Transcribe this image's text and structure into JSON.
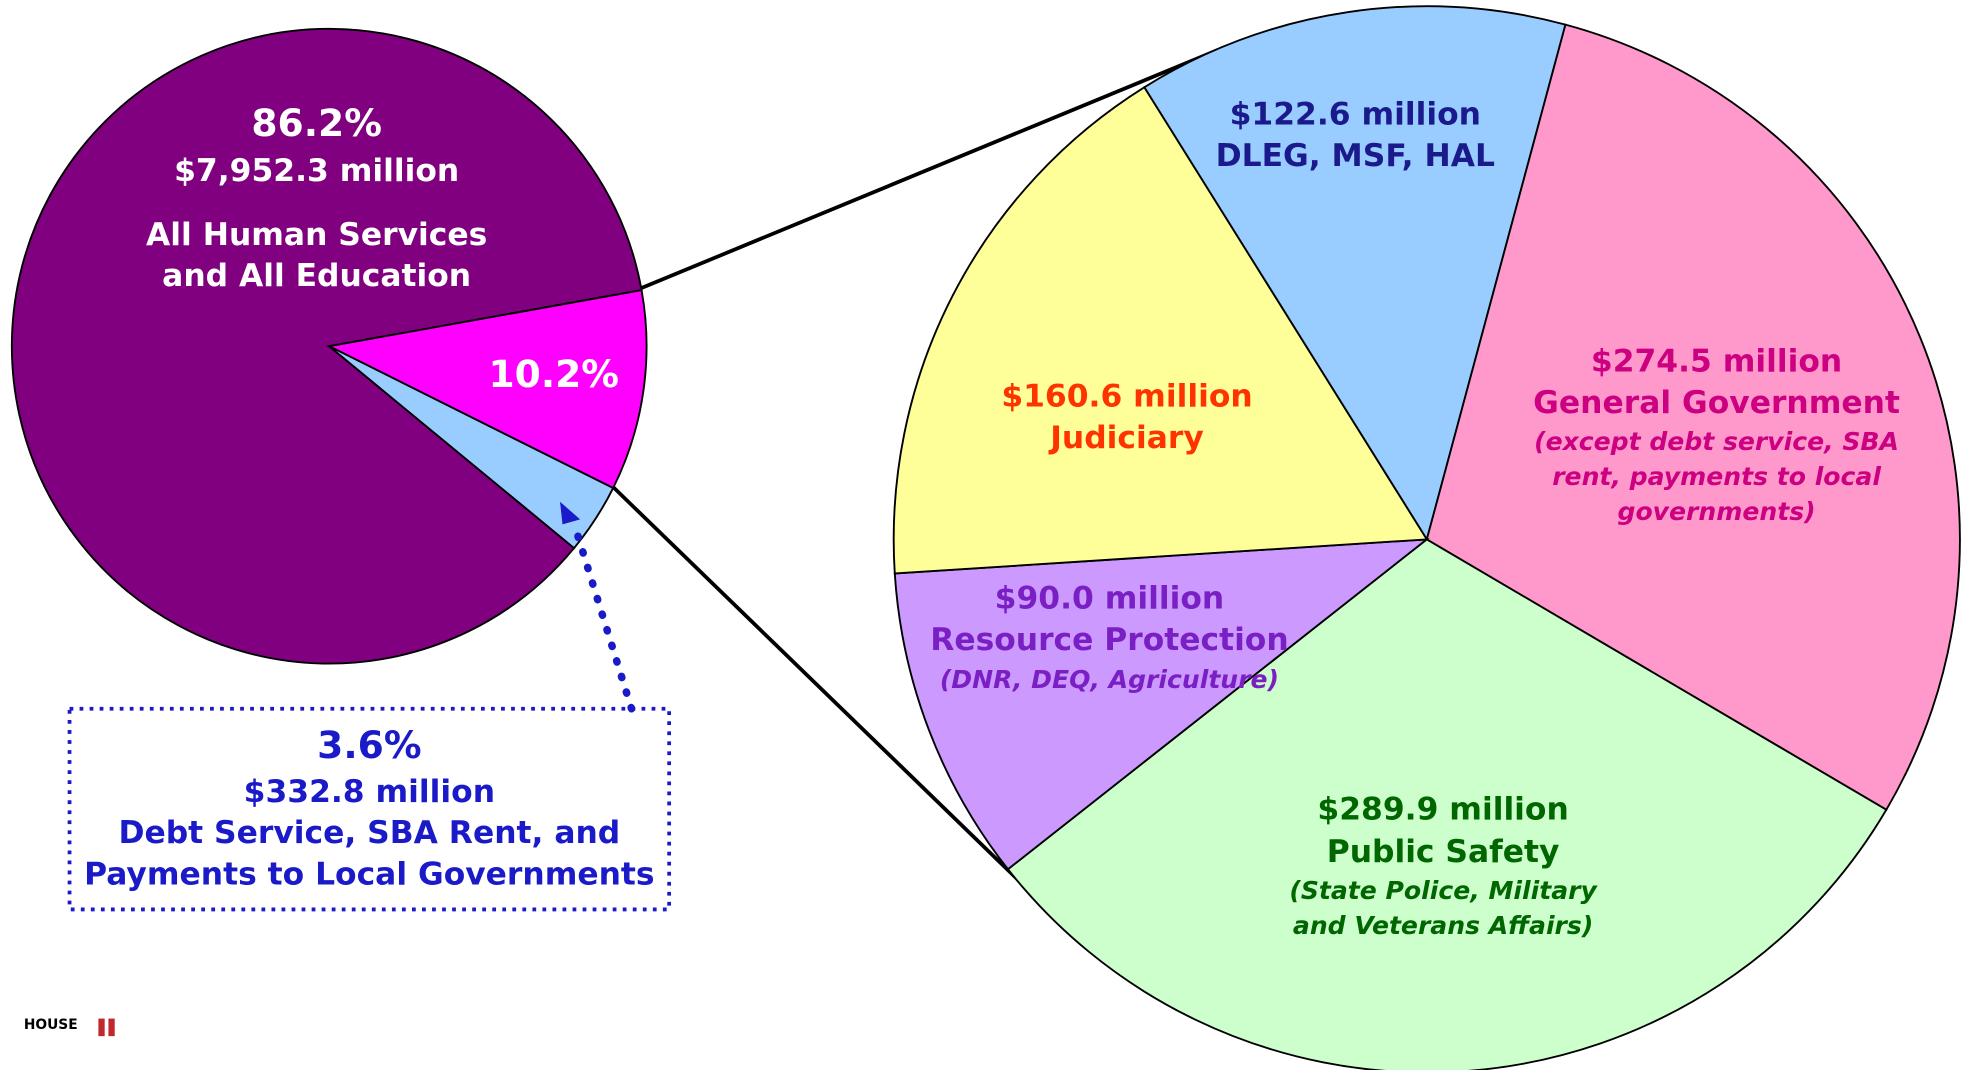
{
  "chart_data": [
    {
      "type": "pie",
      "values": [
        86.2,
        10.2,
        3.6
      ],
      "value_labels": [
        "86.2%",
        "10.2%",
        "3.6%"
      ],
      "labels": [
        [
          "$7,952.3 million",
          "All Human Services",
          "and All Education"
        ],
        [],
        [
          "$332.8 million",
          "Debt Service, SBA Rent, and",
          "Payments to Local Governments"
        ]
      ],
      "colors": [
        "#800080",
        "#ff00ff",
        "#99ccff"
      ],
      "label_colors": [
        "#ffffff",
        "#ffffff",
        "#1a1ac8"
      ]
    },
    {
      "type": "pie",
      "values": [
        122.6,
        274.5,
        289.9,
        90.0,
        160.6
      ],
      "value_labels": [
        "$122.6 million",
        "$274.5 million",
        "$289.9 million",
        "$90.0 million",
        "$160.6 million"
      ],
      "names": [
        "DLEG, MSF, HAL",
        "General Government",
        "Public Safety",
        "Resource Protection",
        "Judiciary"
      ],
      "notes": [
        [],
        [
          "(except debt service, SBA",
          "rent, payments to local",
          "governments)"
        ],
        [
          "(State Police, Military",
          "and Veterans Affairs)"
        ],
        [
          "(DNR, DEQ, Agriculture)"
        ],
        []
      ],
      "colors": [
        "#99ccff",
        "#ff99cc",
        "#ccffcc",
        "#cc99ff",
        "#ffff99"
      ],
      "label_colors": [
        "#1a1a8c",
        "#cc0080",
        "#006600",
        "#7a1fc4",
        "#ff3300"
      ]
    }
  ],
  "logo": {
    "text": "HOUSE"
  }
}
